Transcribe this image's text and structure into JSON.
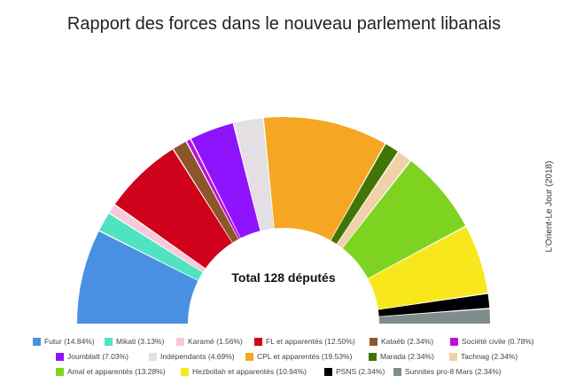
{
  "title": "Rapport des forces dans le nouveau parlement libanais",
  "credit": "L'Orient-Le Jour (2018)",
  "chart_data": {
    "type": "pie",
    "shape": "semicircle-donut",
    "title": "Rapport des forces dans le nouveau parlement libanais",
    "center_label": "Total 128 députés",
    "legend_position": "bottom",
    "total": 128,
    "series": [
      {
        "name": "Futur",
        "legend": "Futur (14.84%)",
        "seats": 19,
        "percent": 14.84,
        "color": "#4a90e2"
      },
      {
        "name": "Mikati",
        "legend": "Mikati (3.13%)",
        "seats": 4,
        "percent": 3.13,
        "color": "#50e3c2"
      },
      {
        "name": "Karamé",
        "legend": "Karamé (1.56%)",
        "seats": 2,
        "percent": 1.56,
        "color": "#f8c8dc"
      },
      {
        "name": "FL et apparentés",
        "legend": "FL et apparentés (12.50%)",
        "seats": 16,
        "percent": 12.5,
        "color": "#d0021b"
      },
      {
        "name": "Kataëb",
        "legend": "Kataëb (2.34%)",
        "seats": 3,
        "percent": 2.34,
        "color": "#8b572a"
      },
      {
        "name": "Société civile",
        "legend": "Société civile (0.78%)",
        "seats": 1,
        "percent": 0.78,
        "color": "#bd10e0"
      },
      {
        "name": "Joumblatt",
        "legend": "Joumblatt (7.03%)",
        "seats": 9,
        "percent": 7.03,
        "color": "#9013fe"
      },
      {
        "name": "Indépendants",
        "legend": "Indépendants (4.69%)",
        "seats": 6,
        "percent": 4.69,
        "color": "#e3dfe3"
      },
      {
        "name": "CPL et apparentés",
        "legend": "CPL et apparentés (19.53%)",
        "seats": 25,
        "percent": 19.53,
        "color": "#f5a623"
      },
      {
        "name": "Marada",
        "legend": "Marada (2.34%)",
        "seats": 3,
        "percent": 2.34,
        "color": "#417505"
      },
      {
        "name": "Tachnag",
        "legend": "Tachnag (2.34%)",
        "seats": 3,
        "percent": 2.34,
        "color": "#f0d2a8"
      },
      {
        "name": "Amal et apparentés",
        "legend": "Amal et apparentés (13.28%)",
        "seats": 17,
        "percent": 13.28,
        "color": "#7ed321"
      },
      {
        "name": "Hezbollah et apparentés",
        "legend": "Hezbollah et apparentés (10.94%)",
        "seats": 14,
        "percent": 10.94,
        "color": "#f8e71c"
      },
      {
        "name": "PSNS",
        "legend": "PSNS (2.34%)",
        "seats": 3,
        "percent": 2.34,
        "color": "#000000"
      },
      {
        "name": "Sunnites pro-8 Mars",
        "legend": "Sunnites pro-8 Mars (2.34%)",
        "seats": 3,
        "percent": 2.34,
        "color": "#7f8c8d"
      }
    ]
  }
}
